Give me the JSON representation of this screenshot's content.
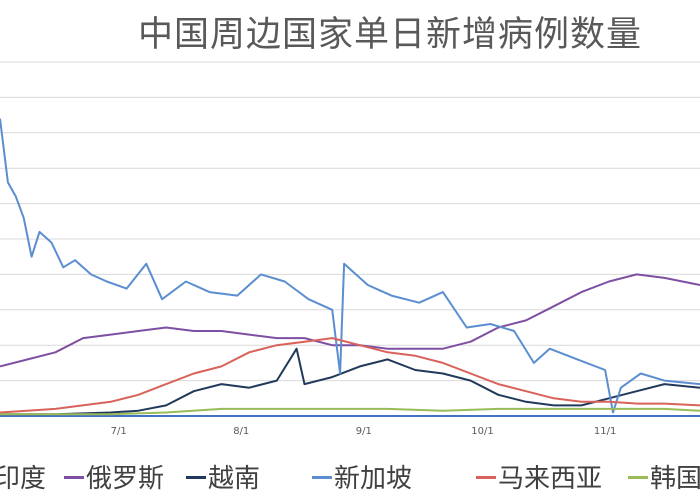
{
  "chart_data": {
    "type": "line",
    "title": "中国周边国家单日新增病例数量",
    "xlabel": "",
    "ylabel": "",
    "x_start": "2020-06-01",
    "x_end": "2020-11-25",
    "x_ticks": [
      {
        "date": "2020-07-01",
        "label": "7/1"
      },
      {
        "date": "2020-08-01",
        "label": "8/1"
      },
      {
        "date": "2020-09-01",
        "label": "9/1"
      },
      {
        "date": "2020-10-01",
        "label": "10/1"
      },
      {
        "date": "2020-11-01",
        "label": "11/1"
      }
    ],
    "y_gridlines": 10,
    "grid": true,
    "legend_position": "bottom",
    "series": [
      {
        "name": "印度",
        "color": "#4472c4",
        "points": [
          [
            "2020-06-01",
            0
          ],
          [
            "2020-08-01",
            0
          ],
          [
            "2020-11-25",
            0
          ]
        ]
      },
      {
        "name": "俄罗斯",
        "color": "#7e4fa3",
        "points": [
          [
            "2020-06-01",
            1.4
          ],
          [
            "2020-06-08",
            1.6
          ],
          [
            "2020-06-15",
            1.8
          ],
          [
            "2020-06-22",
            2.2
          ],
          [
            "2020-06-29",
            2.3
          ],
          [
            "2020-07-06",
            2.4
          ],
          [
            "2020-07-13",
            2.5
          ],
          [
            "2020-07-20",
            2.4
          ],
          [
            "2020-07-27",
            2.4
          ],
          [
            "2020-08-03",
            2.3
          ],
          [
            "2020-08-10",
            2.2
          ],
          [
            "2020-08-17",
            2.2
          ],
          [
            "2020-08-24",
            2.0
          ],
          [
            "2020-08-31",
            2.0
          ],
          [
            "2020-09-07",
            1.9
          ],
          [
            "2020-09-14",
            1.9
          ],
          [
            "2020-09-21",
            1.9
          ],
          [
            "2020-09-28",
            2.1
          ],
          [
            "2020-10-05",
            2.5
          ],
          [
            "2020-10-12",
            2.7
          ],
          [
            "2020-10-19",
            3.1
          ],
          [
            "2020-10-26",
            3.5
          ],
          [
            "2020-11-02",
            3.8
          ],
          [
            "2020-11-09",
            4.0
          ],
          [
            "2020-11-16",
            3.9
          ],
          [
            "2020-11-25",
            3.7
          ]
        ]
      },
      {
        "name": "越南",
        "color": "#213a5c",
        "points": [
          [
            "2020-06-01",
            0.05
          ],
          [
            "2020-06-15",
            0.05
          ],
          [
            "2020-06-29",
            0.1
          ],
          [
            "2020-07-06",
            0.15
          ],
          [
            "2020-07-13",
            0.3
          ],
          [
            "2020-07-20",
            0.7
          ],
          [
            "2020-07-27",
            0.9
          ],
          [
            "2020-08-03",
            0.8
          ],
          [
            "2020-08-10",
            1.0
          ],
          [
            "2020-08-15",
            1.9
          ],
          [
            "2020-08-17",
            0.9
          ],
          [
            "2020-08-24",
            1.1
          ],
          [
            "2020-08-31",
            1.4
          ],
          [
            "2020-09-07",
            1.6
          ],
          [
            "2020-09-14",
            1.3
          ],
          [
            "2020-09-21",
            1.2
          ],
          [
            "2020-09-28",
            1.0
          ],
          [
            "2020-10-05",
            0.6
          ],
          [
            "2020-10-12",
            0.4
          ],
          [
            "2020-10-19",
            0.3
          ],
          [
            "2020-10-26",
            0.3
          ],
          [
            "2020-11-02",
            0.5
          ],
          [
            "2020-11-09",
            0.7
          ],
          [
            "2020-11-16",
            0.9
          ],
          [
            "2020-11-25",
            0.8
          ]
        ]
      },
      {
        "name": "新加坡",
        "color": "#5b8ed0",
        "points": [
          [
            "2020-06-01",
            8.4
          ],
          [
            "2020-06-03",
            6.6
          ],
          [
            "2020-06-05",
            6.2
          ],
          [
            "2020-06-07",
            5.6
          ],
          [
            "2020-06-09",
            4.5
          ],
          [
            "2020-06-11",
            5.2
          ],
          [
            "2020-06-14",
            4.9
          ],
          [
            "2020-06-17",
            4.2
          ],
          [
            "2020-06-20",
            4.4
          ],
          [
            "2020-06-24",
            4.0
          ],
          [
            "2020-06-28",
            3.8
          ],
          [
            "2020-07-03",
            3.6
          ],
          [
            "2020-07-08",
            4.3
          ],
          [
            "2020-07-12",
            3.3
          ],
          [
            "2020-07-18",
            3.8
          ],
          [
            "2020-07-24",
            3.5
          ],
          [
            "2020-07-31",
            3.4
          ],
          [
            "2020-08-06",
            4.0
          ],
          [
            "2020-08-12",
            3.8
          ],
          [
            "2020-08-18",
            3.3
          ],
          [
            "2020-08-24",
            3.0
          ],
          [
            "2020-08-26",
            1.2
          ],
          [
            "2020-08-27",
            4.3
          ],
          [
            "2020-09-02",
            3.7
          ],
          [
            "2020-09-08",
            3.4
          ],
          [
            "2020-09-15",
            3.2
          ],
          [
            "2020-09-21",
            3.5
          ],
          [
            "2020-09-27",
            2.5
          ],
          [
            "2020-10-03",
            2.6
          ],
          [
            "2020-10-09",
            2.4
          ],
          [
            "2020-10-14",
            1.5
          ],
          [
            "2020-10-18",
            1.9
          ],
          [
            "2020-10-25",
            1.6
          ],
          [
            "2020-11-01",
            1.3
          ],
          [
            "2020-11-03",
            0.1
          ],
          [
            "2020-11-05",
            0.8
          ],
          [
            "2020-11-10",
            1.2
          ],
          [
            "2020-11-16",
            1.0
          ],
          [
            "2020-11-25",
            0.9
          ]
        ]
      },
      {
        "name": "马来西亚",
        "color": "#d9625b",
        "points": [
          [
            "2020-06-01",
            0.1
          ],
          [
            "2020-06-15",
            0.2
          ],
          [
            "2020-06-29",
            0.4
          ],
          [
            "2020-07-06",
            0.6
          ],
          [
            "2020-07-13",
            0.9
          ],
          [
            "2020-07-20",
            1.2
          ],
          [
            "2020-07-27",
            1.4
          ],
          [
            "2020-08-03",
            1.8
          ],
          [
            "2020-08-10",
            2.0
          ],
          [
            "2020-08-17",
            2.1
          ],
          [
            "2020-08-24",
            2.2
          ],
          [
            "2020-08-31",
            2.0
          ],
          [
            "2020-09-07",
            1.8
          ],
          [
            "2020-09-14",
            1.7
          ],
          [
            "2020-09-21",
            1.5
          ],
          [
            "2020-09-28",
            1.2
          ],
          [
            "2020-10-05",
            0.9
          ],
          [
            "2020-10-12",
            0.7
          ],
          [
            "2020-10-19",
            0.5
          ],
          [
            "2020-10-26",
            0.4
          ],
          [
            "2020-11-02",
            0.4
          ],
          [
            "2020-11-09",
            0.35
          ],
          [
            "2020-11-16",
            0.35
          ],
          [
            "2020-11-25",
            0.3
          ]
        ]
      },
      {
        "name": "韩国",
        "color": "#9bbb59",
        "points": [
          [
            "2020-06-01",
            0.05
          ],
          [
            "2020-06-29",
            0.05
          ],
          [
            "2020-07-13",
            0.1
          ],
          [
            "2020-07-27",
            0.2
          ],
          [
            "2020-08-10",
            0.2
          ],
          [
            "2020-08-24",
            0.2
          ],
          [
            "2020-09-07",
            0.2
          ],
          [
            "2020-09-21",
            0.15
          ],
          [
            "2020-10-05",
            0.2
          ],
          [
            "2020-10-19",
            0.2
          ],
          [
            "2020-11-02",
            0.2
          ],
          [
            "2020-11-16",
            0.2
          ],
          [
            "2020-11-25",
            0.15
          ]
        ]
      }
    ]
  }
}
